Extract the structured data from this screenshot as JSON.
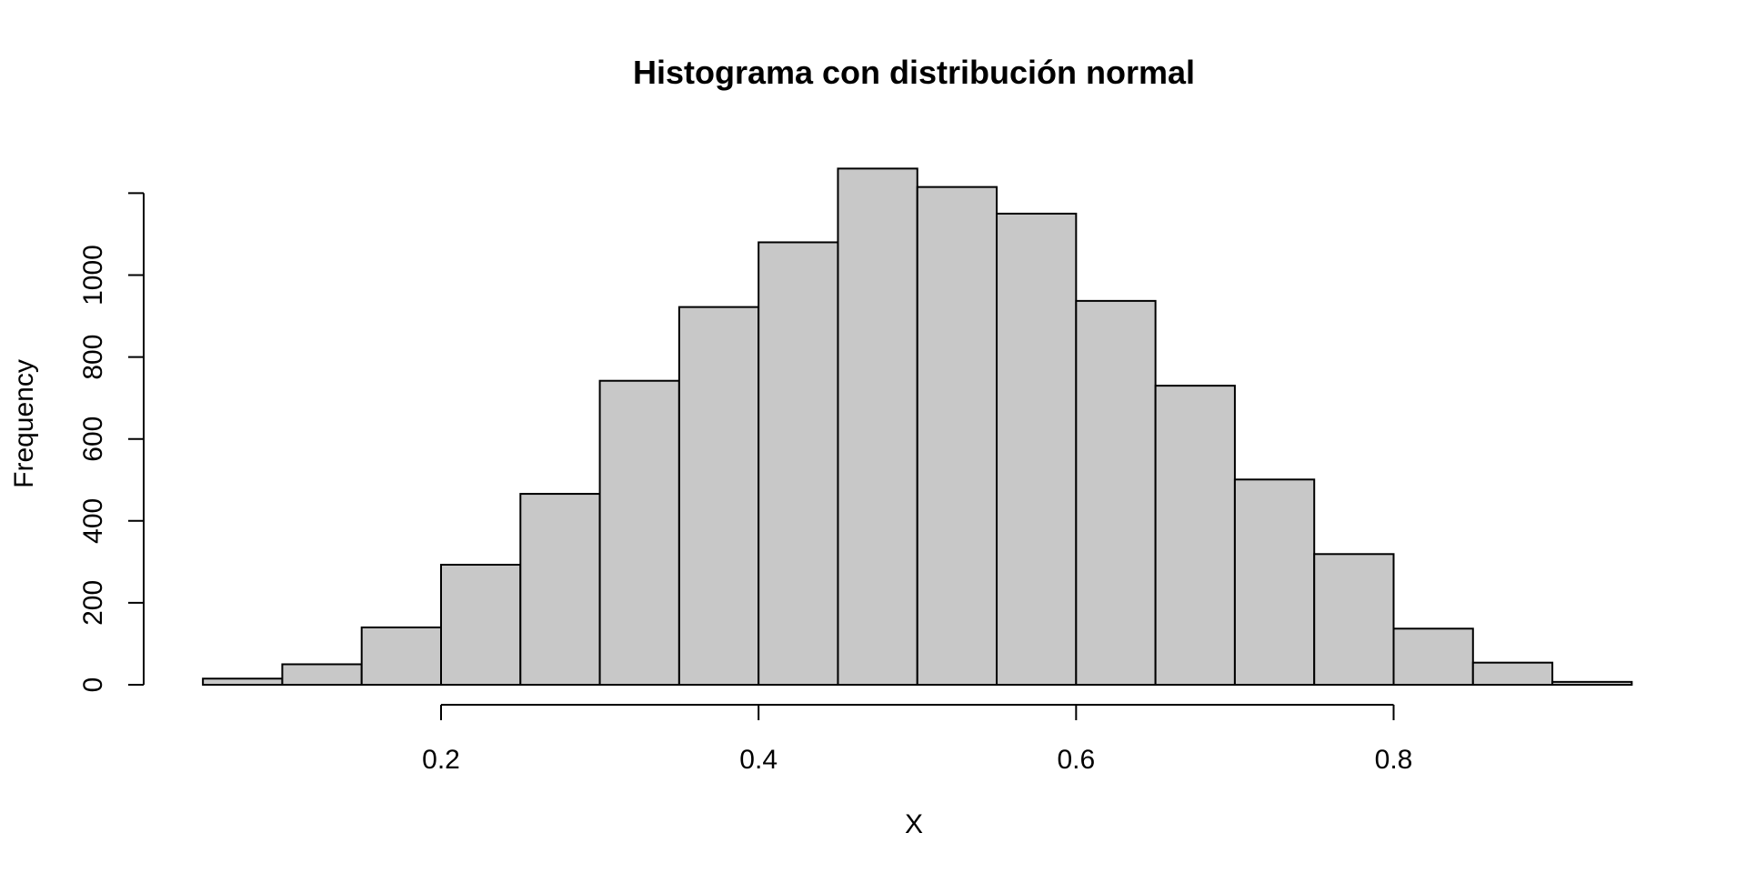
{
  "chart_data": {
    "type": "bar",
    "title": "Histograma con distribución normal",
    "xlabel": "X",
    "ylabel": "Frequency",
    "bin_width": 0.05,
    "bin_starts": [
      0.05,
      0.1,
      0.15,
      0.2,
      0.25,
      0.3,
      0.35,
      0.4,
      0.45,
      0.5,
      0.55,
      0.6,
      0.65,
      0.7,
      0.75,
      0.8,
      0.85,
      0.9
    ],
    "values": [
      15,
      50,
      140,
      293,
      466,
      742,
      922,
      1080,
      1260,
      1215,
      1150,
      937,
      730,
      501,
      319,
      137,
      54,
      7
    ],
    "xlim": [
      0.2,
      0.8
    ],
    "x_ticks": [
      0.2,
      0.4,
      0.6,
      0.8
    ],
    "x_tick_labels": [
      "0.2",
      "0.4",
      "0.6",
      "0.8"
    ],
    "ylim": [
      0,
      1200
    ],
    "y_ticks": [
      0,
      200,
      400,
      600,
      800,
      1000,
      1200
    ],
    "y_tick_labels": [
      "0",
      "200",
      "400",
      "600",
      "800",
      "1000",
      ""
    ],
    "grid": false,
    "bar_color": "#c8c8c8",
    "edge_color": "#000000"
  }
}
